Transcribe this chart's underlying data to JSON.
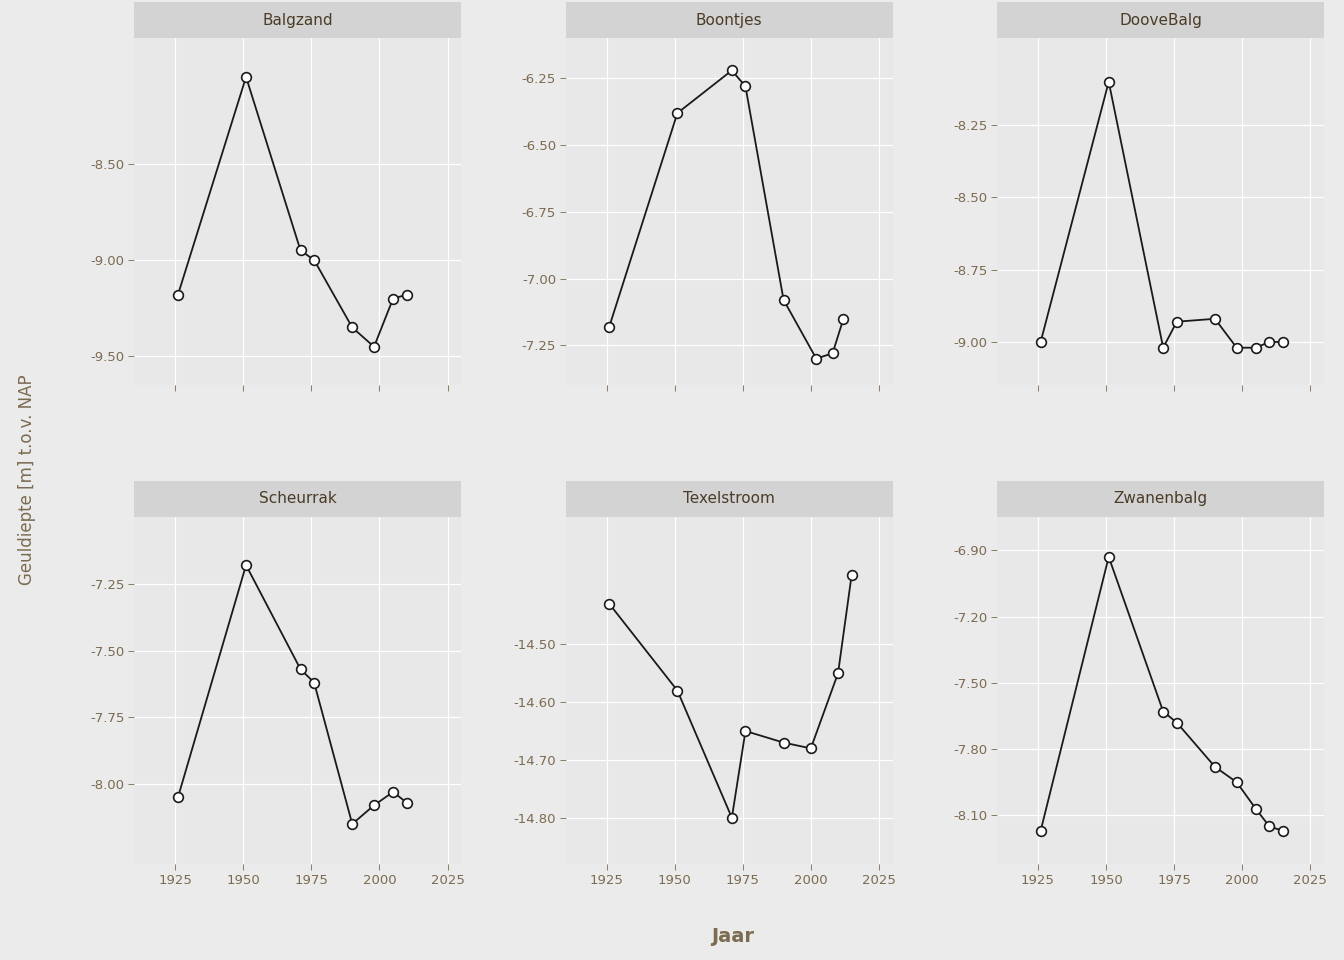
{
  "subplots": [
    {
      "title": "Balgzand",
      "x": [
        1926,
        1951,
        1971,
        1976,
        1990,
        1998,
        2005,
        2010
      ],
      "y": [
        -9.18,
        -8.05,
        -8.95,
        -9.0,
        -9.35,
        -9.45,
        -9.2,
        -9.18
      ],
      "yticks": [
        -8.5,
        -9.0,
        -9.5
      ],
      "ylim": [
        -9.65,
        -7.85
      ]
    },
    {
      "title": "Boontjes",
      "x": [
        1926,
        1951,
        1971,
        1976,
        1990,
        2002,
        2008,
        2012
      ],
      "y": [
        -7.18,
        -6.38,
        -6.22,
        -6.28,
        -7.08,
        -7.3,
        -7.28,
        -7.15
      ],
      "yticks": [
        -6.25,
        -6.5,
        -6.75,
        -7.0,
        -7.25
      ],
      "ylim": [
        -7.4,
        -6.1
      ]
    },
    {
      "title": "DooveBalg",
      "x": [
        1926,
        1951,
        1971,
        1976,
        1990,
        1998,
        2005,
        2010,
        2015
      ],
      "y": [
        -9.0,
        -8.1,
        -9.02,
        -8.93,
        -8.92,
        -9.02,
        -9.02,
        -9.0,
        -9.0
      ],
      "yticks": [
        -8.25,
        -8.5,
        -8.75,
        -9.0
      ],
      "ylim": [
        -9.15,
        -7.95
      ]
    },
    {
      "title": "Scheurrak",
      "x": [
        1926,
        1951,
        1971,
        1976,
        1990,
        1998,
        2005,
        2010
      ],
      "y": [
        -8.05,
        -7.18,
        -7.57,
        -7.62,
        -8.15,
        -8.08,
        -8.03,
        -8.07
      ],
      "yticks": [
        -7.25,
        -7.5,
        -7.75,
        -8.0
      ],
      "ylim": [
        -8.3,
        -7.0
      ]
    },
    {
      "title": "Texelstroom",
      "x": [
        1926,
        1951,
        1971,
        1976,
        1990,
        2000,
        2010,
        2015
      ],
      "y": [
        -14.43,
        -14.58,
        -14.8,
        -14.65,
        -14.67,
        -14.68,
        -14.55,
        -14.38
      ],
      "yticks": [
        -14.5,
        -14.6,
        -14.7,
        -14.8
      ],
      "ylim": [
        -14.88,
        -14.28
      ]
    },
    {
      "title": "Zwanenbalg",
      "x": [
        1926,
        1951,
        1971,
        1976,
        1990,
        1998,
        2005,
        2010,
        2015
      ],
      "y": [
        -8.17,
        -6.93,
        -7.63,
        -7.68,
        -7.88,
        -7.95,
        -8.07,
        -8.15,
        -8.17
      ],
      "yticks": [
        -6.9,
        -7.2,
        -7.5,
        -7.8,
        -8.1
      ],
      "ylim": [
        -8.32,
        -6.75
      ]
    }
  ],
  "xlabel": "Jaar",
  "ylabel": "Geuldiepte [m] t.o.v. NAP",
  "xlim": [
    1910,
    2030
  ],
  "xticks": [
    1925,
    1950,
    1975,
    2000,
    2025
  ],
  "fig_bg": "#EBEBEB",
  "panel_bg": "#E8E8E8",
  "strip_bg": "#D3D3D3",
  "grid_color": "#FFFFFF",
  "line_color": "#1A1A1A",
  "marker_facecolor": "#FFFFFF",
  "marker_edgecolor": "#1A1A1A",
  "tick_color": "#7B6B50",
  "label_color": "#7B6B50",
  "title_color": "#4A3C28"
}
